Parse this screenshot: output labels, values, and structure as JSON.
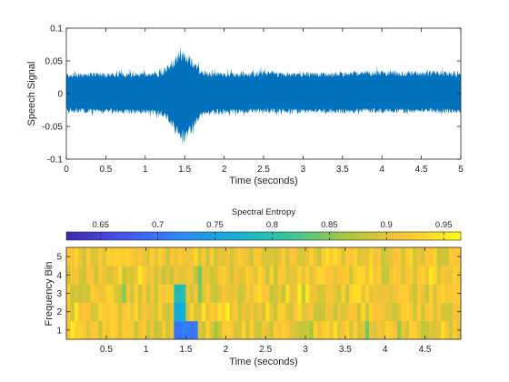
{
  "chart_data": [
    {
      "type": "line",
      "title": "",
      "xlabel": "Time (seconds)",
      "ylabel": "Speech Signal",
      "xlim": [
        0,
        5
      ],
      "ylim": [
        -0.1,
        0.1
      ],
      "x_ticks": [
        "0",
        "0.5",
        "1",
        "1.5",
        "2",
        "2.5",
        "3",
        "3.5",
        "4",
        "4.5",
        "5"
      ],
      "y_ticks": [
        "-0.1",
        "-0.05",
        "0",
        "0.05",
        "0.1"
      ],
      "series": [
        {
          "color": "#0072BD",
          "envelope_time": [
            0,
            0.5,
            1.0,
            1.2,
            1.3,
            1.4,
            1.5,
            1.6,
            1.7,
            1.8,
            2.0,
            2.5,
            3.0,
            3.5,
            4.0,
            4.5,
            5.0
          ],
          "envelope_upper": [
            0.033,
            0.034,
            0.033,
            0.035,
            0.045,
            0.06,
            0.068,
            0.055,
            0.038,
            0.034,
            0.033,
            0.036,
            0.034,
            0.035,
            0.037,
            0.036,
            0.035
          ],
          "envelope_lower": [
            -0.03,
            -0.031,
            -0.032,
            -0.034,
            -0.045,
            -0.065,
            -0.078,
            -0.058,
            -0.038,
            -0.033,
            -0.032,
            -0.03,
            -0.031,
            -0.031,
            -0.03,
            -0.03,
            -0.03
          ]
        }
      ]
    },
    {
      "type": "heatmap",
      "xlabel": "Time (seconds)",
      "ylabel": "Frequency Bin",
      "x_ticks": [
        "0.5",
        "1",
        "1.5",
        "2",
        "2.5",
        "3",
        "3.5",
        "4",
        "4.5"
      ],
      "y_ticks": [
        "1",
        "2",
        "3",
        "4",
        "5"
      ],
      "xlim": [
        0.0,
        4.95
      ],
      "rows": 5,
      "columns": 99,
      "colorbar": {
        "title": "Spectral Entropy",
        "location": "top",
        "range": [
          0.62,
          0.965
        ],
        "ticks": [
          "0.65",
          "0.7",
          "0.75",
          "0.8",
          "0.85",
          "0.9",
          "0.95"
        ]
      },
      "low_entropy_regions": [
        {
          "time": [
            1.35,
            1.67
          ],
          "bins": [
            1,
            1
          ],
          "value": 0.7
        },
        {
          "time": [
            1.35,
            1.5
          ],
          "bins": [
            2,
            2
          ],
          "value": 0.77
        },
        {
          "time": [
            1.35,
            1.5
          ],
          "bins": [
            3,
            3
          ],
          "value": 0.8
        }
      ],
      "typical_value": 0.93
    }
  ]
}
